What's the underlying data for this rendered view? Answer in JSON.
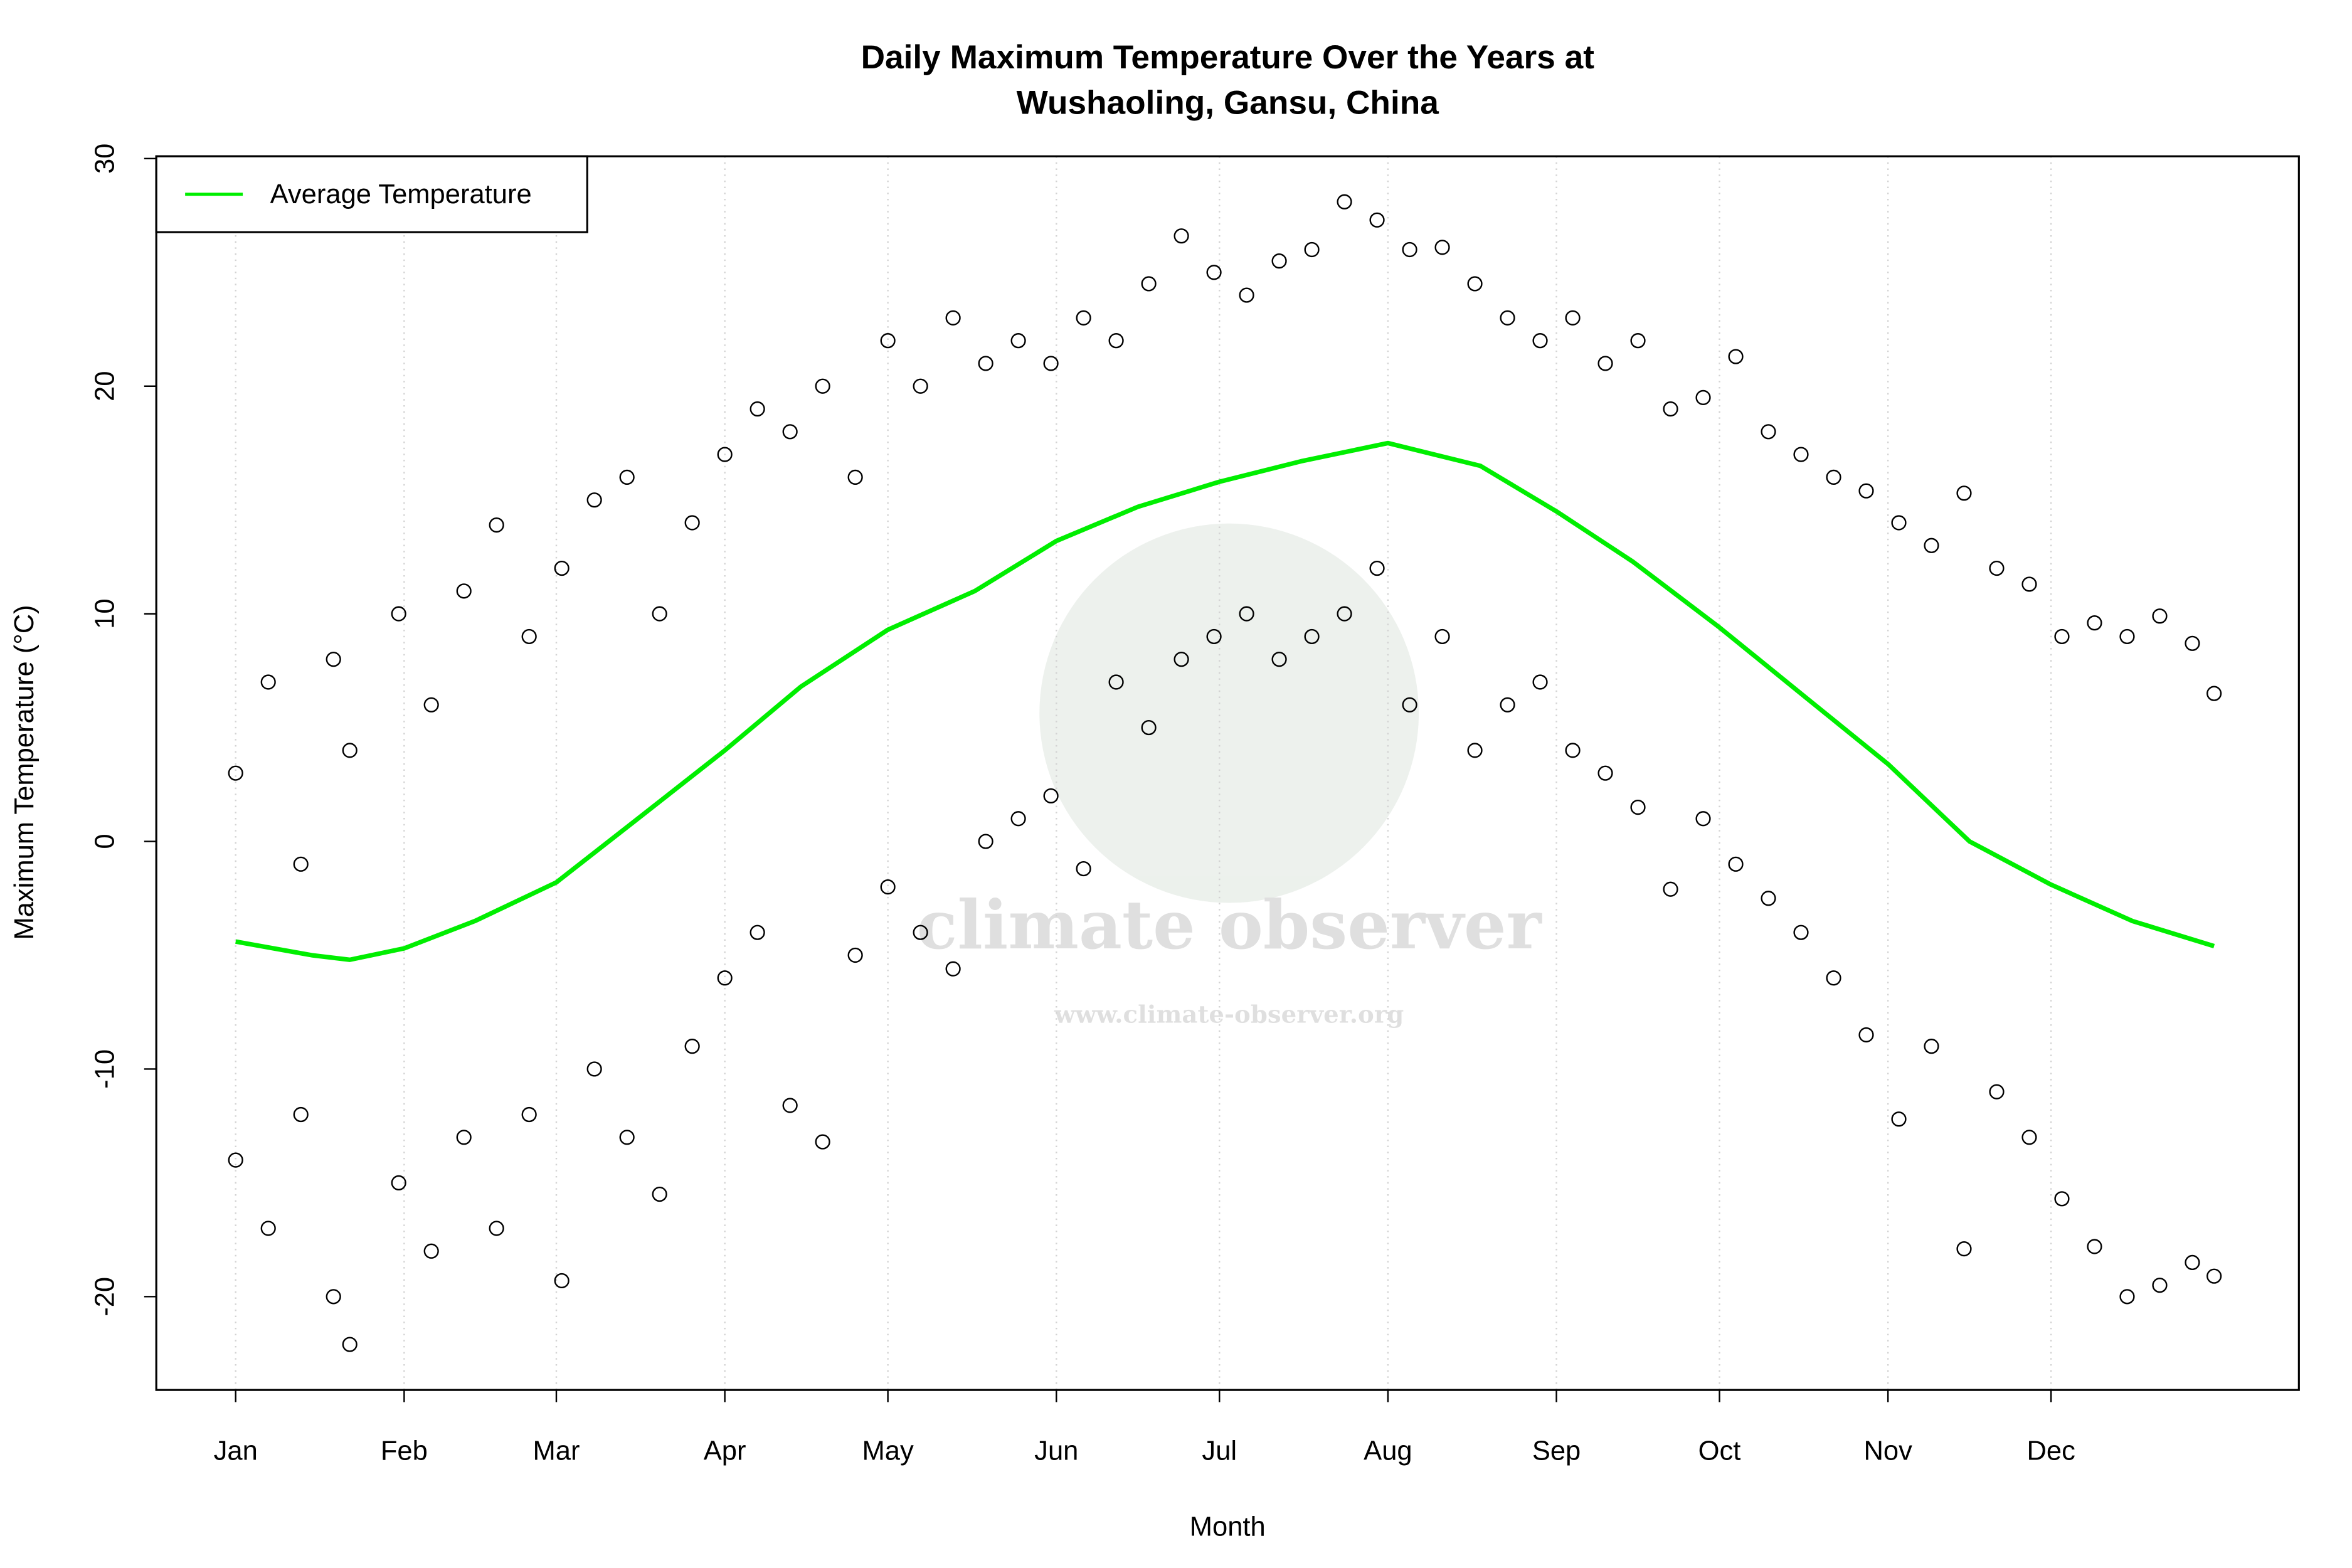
{
  "chart_data": {
    "type": "scatter",
    "title": "Daily Maximum Temperature Over the Years at",
    "subtitle": "Wushaoling, Gansu, China",
    "x_label": "Month",
    "y_label": "Maximum Temperature (°C)",
    "watermark": "climate observer",
    "watermark_url": "www.climate-observer.org",
    "xlim": [
      -13.6,
      380.6
    ],
    "ylim": [
      -24.1,
      30.1
    ],
    "xticks": [
      {
        "value": 1,
        "label": "Jan"
      },
      {
        "value": 32,
        "label": "Feb"
      },
      {
        "value": 60,
        "label": "Mar"
      },
      {
        "value": 91,
        "label": "Apr"
      },
      {
        "value": 121,
        "label": "May"
      },
      {
        "value": 152,
        "label": "Jun"
      },
      {
        "value": 182,
        "label": "Jul"
      },
      {
        "value": 213,
        "label": "Aug"
      },
      {
        "value": 244,
        "label": "Sep"
      },
      {
        "value": 274,
        "label": "Oct"
      },
      {
        "value": 305,
        "label": "Nov"
      },
      {
        "value": 335,
        "label": "Dec"
      }
    ],
    "yticks": [
      -20,
      -10,
      0,
      10,
      20,
      30
    ],
    "x_grid": true,
    "legend": "top-left",
    "point_color": "#000000",
    "x": [
      1,
      1,
      7,
      7,
      13,
      13,
      19,
      19,
      22,
      22,
      31,
      31,
      37,
      37,
      43,
      43,
      49,
      49,
      55,
      55,
      61,
      61,
      67,
      67,
      73,
      73,
      79,
      79,
      85,
      85,
      91,
      91,
      97,
      97,
      103,
      103,
      109,
      109,
      115,
      115,
      121,
      121,
      127,
      127,
      133,
      133,
      139,
      139,
      145,
      145,
      151,
      151,
      157,
      157,
      163,
      163,
      169,
      169,
      175,
      175,
      181,
      181,
      187,
      187,
      193,
      193,
      199,
      199,
      205,
      205,
      211,
      211,
      217,
      217,
      223,
      223,
      229,
      229,
      235,
      235,
      241,
      241,
      247,
      247,
      253,
      253,
      259,
      259,
      265,
      265,
      271,
      271,
      277,
      277,
      283,
      283,
      289,
      289,
      295,
      295,
      301,
      301,
      307,
      307,
      313,
      313,
      319,
      319,
      325,
      325,
      331,
      331,
      337,
      337,
      343,
      343,
      349,
      349,
      355,
      355,
      361,
      361,
      365,
      365
    ],
    "values": [
      3,
      -14,
      7,
      -17,
      -1,
      -12,
      8,
      -20,
      4,
      -22.1,
      10,
      -15,
      6,
      -18,
      11,
      -13,
      13.9,
      -17,
      9,
      -12,
      12,
      -19.3,
      15,
      -10,
      16,
      -13,
      10,
      -15.5,
      14,
      -9,
      17,
      -6,
      19,
      -4,
      18,
      -11.6,
      20,
      -13.2,
      16,
      -5,
      22,
      -2,
      20,
      -4,
      23,
      -5.6,
      21,
      0,
      22,
      1,
      21,
      2,
      23,
      -1.2,
      22,
      7,
      24.5,
      5,
      26.6,
      8,
      25,
      9,
      24,
      10,
      25.5,
      8,
      26,
      9,
      28.1,
      10,
      27.3,
      12,
      26,
      6,
      26.1,
      9,
      24.5,
      4,
      23,
      6,
      22,
      7,
      23,
      4,
      21,
      3,
      22,
      1.5,
      19,
      -2.1,
      19.5,
      1,
      21.3,
      -1,
      18,
      -2.5,
      17,
      -4,
      16,
      -6,
      15.4,
      -8.5,
      14,
      -12.2,
      13,
      -9,
      15.3,
      -17.9,
      12,
      -11,
      11.3,
      -13,
      9,
      -15.7,
      9.6,
      -17.8,
      9,
      -20,
      9.9,
      -19.5,
      8.7,
      -18.5,
      6.5,
      -19.1
    ],
    "lines": [
      {
        "name": "Average Temperature",
        "color": "#00ee00",
        "x": [
          1,
          15,
          22,
          32,
          45,
          60,
          75,
          91,
          105,
          121,
          137,
          152,
          167,
          182,
          197,
          213,
          230,
          244,
          258,
          274,
          290,
          305,
          320,
          335,
          350,
          365
        ],
        "values": [
          -4.4,
          -5.0,
          -5.2,
          -4.7,
          -3.5,
          -1.8,
          1.0,
          4.0,
          6.8,
          9.3,
          11.0,
          13.2,
          14.7,
          15.8,
          16.7,
          17.5,
          16.5,
          14.5,
          12.3,
          9.4,
          6.3,
          3.4,
          0.0,
          -1.9,
          -3.5,
          -4.6
        ]
      }
    ]
  }
}
